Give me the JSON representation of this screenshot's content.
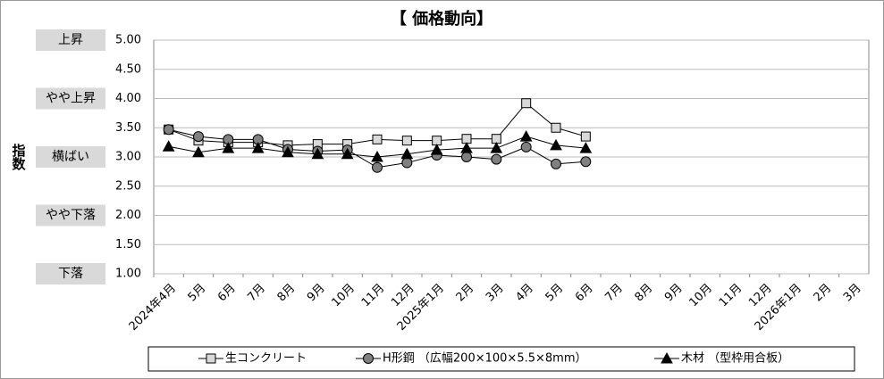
{
  "chart_data": {
    "type": "line",
    "title": "【 価格動向】",
    "y_label": "指数",
    "categories": [
      "2024年4月",
      "5月",
      "6月",
      "7月",
      "8月",
      "9月",
      "10月",
      "11月",
      "12月",
      "2025年1月",
      "2月",
      "3月",
      "4月",
      "5月",
      "6月",
      "7月",
      "8月",
      "9月",
      "10月",
      "11月",
      "12月",
      "2026年1月",
      "2月",
      "3月"
    ],
    "series": [
      {
        "name": "生コンクリート",
        "color": "#d9d9d9",
        "marker": "square",
        "values": [
          3.47,
          3.28,
          3.25,
          3.25,
          3.2,
          3.22,
          3.22,
          3.3,
          3.28,
          3.28,
          3.31,
          3.31,
          3.92,
          3.5,
          3.35,
          null,
          null,
          null,
          null,
          null,
          null,
          null,
          null,
          null
        ]
      },
      {
        "name": "H形鋼 （広幅200×100×5.5×8mm）",
        "color": "#808080",
        "marker": "circle",
        "values": [
          3.47,
          3.35,
          3.3,
          3.3,
          3.13,
          3.1,
          3.12,
          2.82,
          2.9,
          3.03,
          3.0,
          2.96,
          3.17,
          2.88,
          2.92,
          null,
          null,
          null,
          null,
          null,
          null,
          null,
          null,
          null
        ]
      },
      {
        "name": "木材 （型枠用合板）",
        "color": "#000000",
        "marker": "triangle",
        "values": [
          3.18,
          3.08,
          3.15,
          3.15,
          3.08,
          3.05,
          3.05,
          3.0,
          3.05,
          3.12,
          3.15,
          3.15,
          3.35,
          3.2,
          3.15,
          null,
          null,
          null,
          null,
          null,
          null,
          null,
          null,
          null
        ]
      }
    ],
    "ylim": [
      1,
      5
    ],
    "yticks": [
      {
        "value": 1,
        "label": "1.00"
      },
      {
        "value": 1.5,
        "label": "1.50"
      },
      {
        "value": 2,
        "label": "2.00"
      },
      {
        "value": 2.5,
        "label": "2.50"
      },
      {
        "value": 3,
        "label": "3.00"
      },
      {
        "value": 3.5,
        "label": "3.50"
      },
      {
        "value": 4,
        "label": "4.00"
      },
      {
        "value": 4.5,
        "label": "4.50"
      },
      {
        "value": 5,
        "label": "5.00"
      }
    ],
    "level_labels": [
      {
        "value": 5,
        "label": "上昇"
      },
      {
        "value": 4,
        "label": "やや上昇"
      },
      {
        "value": 3,
        "label": "横ばい"
      },
      {
        "value": 2,
        "label": "やや下落"
      },
      {
        "value": 1,
        "label": "下落"
      }
    ],
    "grid": true,
    "legend": "bottom"
  }
}
